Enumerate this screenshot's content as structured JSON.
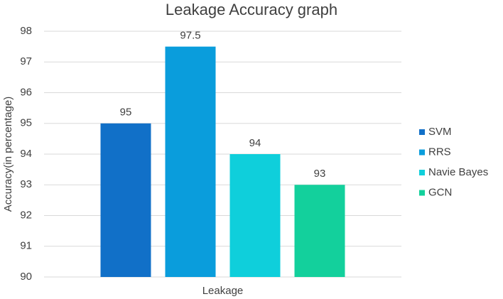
{
  "chart_data": {
    "type": "bar",
    "title": "Leakage Accuracy graph",
    "y_label": "Accuracy(in percentage)",
    "categories": [
      "Leakage"
    ],
    "series": [
      {
        "name": "SVM",
        "color": "#1170c8",
        "values": [
          95
        ]
      },
      {
        "name": "RRS",
        "color": "#0a9ddc",
        "values": [
          97.5
        ]
      },
      {
        "name": "Navie Bayes",
        "color": "#0fcfdb",
        "values": [
          94
        ]
      },
      {
        "name": "GCN",
        "color": "#13d09c",
        "values": [
          93
        ]
      }
    ],
    "ylim": [
      90,
      98
    ],
    "yticks": [
      90,
      91,
      92,
      93,
      94,
      95,
      96,
      97,
      98
    ],
    "grid": true,
    "legend": "right",
    "data_labels": true
  }
}
